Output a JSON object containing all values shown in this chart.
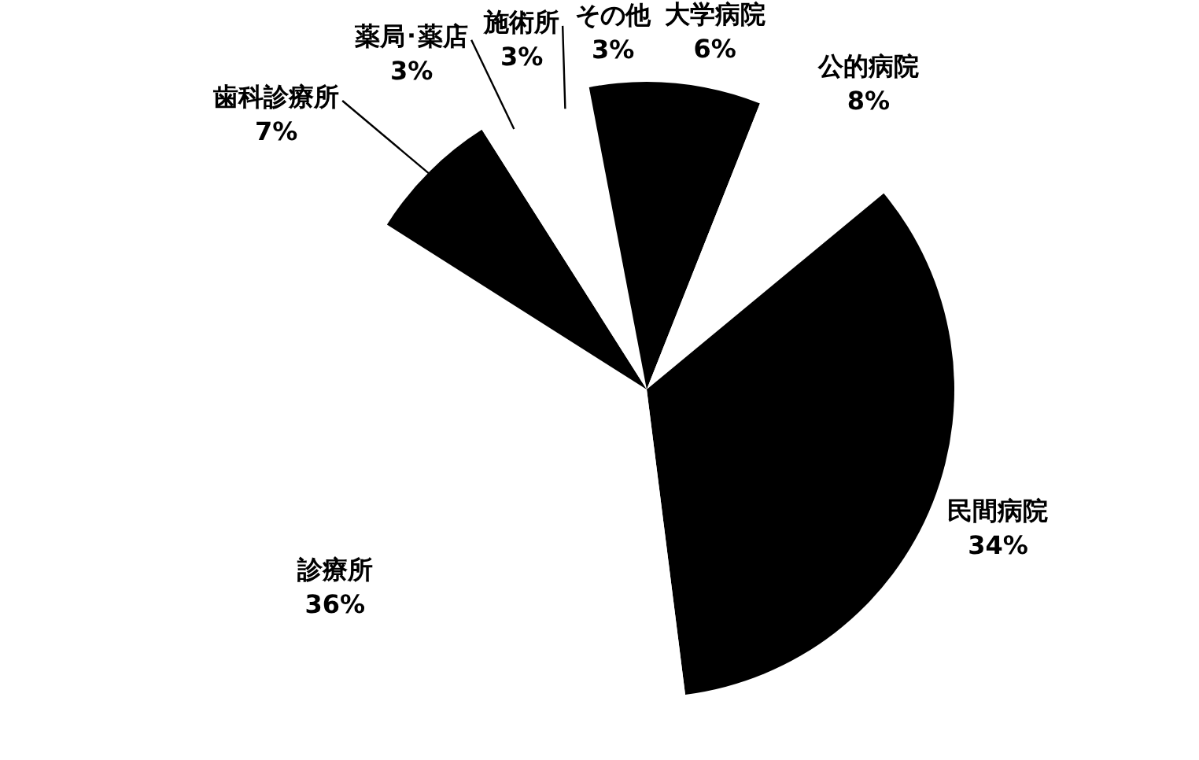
{
  "chart_data": {
    "type": "pie",
    "categories": [
      "大学病院",
      "公的病院",
      "民間病院",
      "診療所",
      "歯科診療所",
      "薬局･薬店",
      "施術所",
      "その他"
    ],
    "values": [
      6,
      8,
      34,
      36,
      7,
      3,
      3,
      3
    ],
    "value_labels": [
      "6%",
      "8%",
      "34%",
      "36%",
      "7%",
      "3%",
      "3%",
      "3%"
    ],
    "colors": [
      "#000000",
      "#ffffff",
      "#000000",
      "#ffffff",
      "#000000",
      "#ffffff",
      "#ffffff",
      "#000000"
    ]
  }
}
